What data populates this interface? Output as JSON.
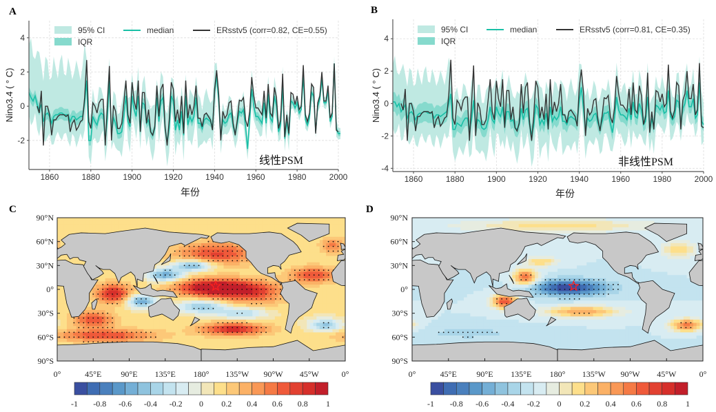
{
  "panels": {
    "A": {
      "letter": "A",
      "psm_label": "线性PSM"
    },
    "B": {
      "letter": "B",
      "psm_label": "非线性PSM"
    },
    "C": {
      "letter": "C"
    },
    "D": {
      "letter": "D"
    }
  },
  "colors": {
    "ci": "#bfe9e2",
    "iqr": "#86dacd",
    "median": "#19bfa6",
    "ersst": "#333333",
    "land": "#c8c8c8",
    "star": "#ff2020"
  },
  "chart_data": [
    {
      "id": "A",
      "type": "line",
      "xlabel": "年份",
      "ylabel": "Nino3.4 ( ° C)",
      "xlim": [
        1850,
        2000
      ],
      "ylim": [
        -3.7,
        5
      ],
      "xticks": [
        1860,
        1880,
        1900,
        1920,
        1940,
        1960,
        1980,
        2000
      ],
      "yticks": [
        -2,
        0,
        2,
        4
      ],
      "legend": {
        "ci": "95% CI",
        "iqr": "IQR",
        "median": "median",
        "ersst": "ERsstv5 (corr=0.82, CE=0.55)",
        "placement": "top"
      },
      "median_start": 1850,
      "median": [
        0.8,
        0.5,
        0.3,
        0.6,
        0.1,
        -0.2,
        0.1,
        -0.9,
        -0.5,
        -0.4,
        -0.6,
        -1.0,
        -0.6,
        -0.5,
        -0.5,
        -0.4,
        -0.4,
        -0.5,
        -0.5,
        -0.5,
        -0.9,
        -0.6,
        -0.6,
        -0.8,
        -0.7,
        -0.6,
        -0.6,
        0.2,
        1.5,
        -2.0,
        -2.0,
        -0.6,
        -0.9,
        -1.1,
        -0.6,
        -0.4,
        -0.5,
        -2.0,
        -0.7,
        1.5,
        -1.6,
        -0.7,
        -1.0,
        -1.6,
        -1.6,
        -1.5,
        -0.6,
        0.6,
        -0.9,
        -1.2,
        0.6,
        -0.2,
        -0.6,
        0.6,
        -1.5,
        0.2,
        0.1,
        -1.0,
        -0.8,
        -1.5,
        -1.7,
        -1.3,
        0.5,
        -0.9,
        0.3,
        0.5,
        -1.3,
        -2.1,
        -1.3,
        0.6,
        0.3,
        -1.4,
        -0.8,
        -1.4,
        -0.3,
        -1.7,
        0.6,
        -1.1,
        -0.6,
        -0.9,
        -0.6,
        0.5,
        -1.0,
        -1.0,
        -1.3,
        -0.8,
        -0.7,
        -0.8,
        -0.9,
        -1.2,
        0.8,
        1.8,
        0.3,
        -1.8,
        -0.8,
        -1.0,
        -0.9,
        -0.5,
        -0.4,
        -1.2,
        -1.6,
        -1.0,
        -0.3,
        -0.4,
        -0.2,
        -1.2,
        -2.5,
        -0.8,
        1.0,
        0.0,
        -0.6,
        -0.6,
        -0.8,
        -1.0,
        0.2,
        -1.0,
        0.7,
        -0.7,
        -0.9,
        0.6,
        0.0,
        -1.5,
        -1.1,
        1.2,
        -1.9,
        -0.9,
        -1.7,
        0.3,
        0.2,
        -0.1,
        0.2,
        -0.4,
        -0.2,
        1.8,
        -0.8,
        -1.1,
        -0.7,
        0.8,
        0.6,
        -1.5,
        0.0,
        0.4,
        1.6,
        0.2,
        0.2,
        0.9,
        -0.9,
        -0.6,
        2.5,
        -1.3,
        -1.6,
        -1.6
      ],
      "bands": [
        {
          "from": 1850,
          "to": 1877,
          "iqr_half": 0.35,
          "ci_upper": 2.8,
          "ci_lower": 1.3
        },
        {
          "from": 1878,
          "to": 1940,
          "iqr_half": 0.3,
          "ci_upper": 1.4,
          "ci_lower": 1.2
        },
        {
          "from": 1941,
          "to": 1976,
          "iqr_half": 0.25,
          "ci_upper": 0.9,
          "ci_lower": 0.8
        },
        {
          "from": 1977,
          "to": 2000,
          "iqr_half": 0.15,
          "ci_upper": 0.4,
          "ci_lower": 0.4
        }
      ]
    },
    {
      "id": "B",
      "type": "line",
      "xlabel": "年份",
      "ylabel": "Nino3.4 ( ° C)",
      "xlim": [
        1850,
        2000
      ],
      "ylim": [
        -4.2,
        5.2
      ],
      "xticks": [
        1860,
        1880,
        1900,
        1920,
        1940,
        1960,
        1980,
        2000
      ],
      "yticks": [
        -4,
        -2,
        0,
        2,
        4
      ],
      "legend": {
        "ci": "95% CI",
        "iqr": "IQR",
        "median": "median",
        "ersst": "ERsstv5 (corr=0.81, CE=0.35)",
        "placement": "top"
      },
      "median_start": 1850,
      "median": [
        0.1,
        0.1,
        -0.2,
        0.0,
        -0.5,
        -0.3,
        -0.1,
        -0.9,
        -0.6,
        -0.5,
        -0.7,
        -1.0,
        -0.7,
        -0.6,
        -0.6,
        -0.5,
        -0.5,
        -0.6,
        -0.6,
        -0.6,
        -0.9,
        -0.7,
        -0.7,
        -0.8,
        -0.7,
        -0.6,
        -0.5,
        0.0,
        0.6,
        -1.6,
        -1.6,
        -1.2,
        -1.3,
        -1.4,
        -1.1,
        -0.9,
        -0.9,
        -1.6,
        -1.0,
        0.2,
        -1.5,
        -1.0,
        -1.1,
        -1.5,
        -1.6,
        -1.5,
        -1.0,
        -0.2,
        -1.0,
        -1.2,
        -0.2,
        -0.6,
        -0.8,
        -0.2,
        -1.4,
        -0.5,
        -0.5,
        -1.1,
        -1.0,
        -1.5,
        -1.6,
        -1.3,
        -0.3,
        -1.0,
        -0.4,
        -0.3,
        -1.3,
        -1.9,
        -1.4,
        -0.1,
        -0.3,
        -1.3,
        -1.0,
        -1.3,
        -0.6,
        -1.5,
        -0.2,
        -1.1,
        -0.8,
        -1.0,
        -0.8,
        -0.2,
        -1.1,
        -1.1,
        -1.3,
        -0.9,
        -0.8,
        -0.9,
        -1.0,
        -1.2,
        0.2,
        1.0,
        -0.3,
        -1.6,
        -0.9,
        -1.1,
        -1.0,
        -0.7,
        -0.6,
        -1.2,
        -1.5,
        -1.1,
        -0.6,
        -0.6,
        -0.5,
        -1.2,
        -1.8,
        -0.9,
        0.4,
        -0.4,
        -0.7,
        -0.7,
        -0.8,
        -1.0,
        -0.3,
        -1.0,
        0.1,
        -0.8,
        -0.9,
        0.0,
        -0.4,
        -1.3,
        -1.1,
        0.4,
        -1.6,
        -1.0,
        -1.4,
        -0.1,
        -0.2,
        -0.4,
        -0.1,
        -0.6,
        -0.5,
        0.8,
        -0.8,
        -1.0,
        -0.8,
        0.2,
        0.1,
        -1.3,
        -0.3,
        0.0,
        0.8,
        -0.2,
        -0.2,
        0.3,
        -0.9,
        -0.7,
        1.3,
        -1.1,
        -1.3
      ],
      "bands": [
        {
          "from": 1850,
          "to": 1877,
          "iqr_half": 0.6,
          "ci_upper": 2.3,
          "ci_lower": 1.6
        },
        {
          "from": 1878,
          "to": 1940,
          "iqr_half": 0.5,
          "ci_upper": 1.9,
          "ci_lower": 1.7
        },
        {
          "from": 1941,
          "to": 1976,
          "iqr_half": 0.45,
          "ci_upper": 1.7,
          "ci_lower": 1.5
        },
        {
          "from": 1977,
          "to": 2000,
          "iqr_half": 0.4,
          "ci_upper": 1.5,
          "ci_lower": 1.2
        }
      ]
    },
    {
      "id": "C",
      "type": "heatmap",
      "lat_labels": [
        "90°N",
        "60°N",
        "30°N",
        "0°",
        "30°S",
        "60°S",
        "90°S"
      ],
      "lon_labels": [
        "0°",
        "45°E",
        "90°E",
        "135°E",
        "180°",
        "135°W",
        "90°W",
        "45°W",
        "0°"
      ],
      "colorbar": {
        "tick_labels": [
          "-1",
          "-0.8",
          "-0.6",
          "-0.4",
          "-0.2",
          "0",
          "0.2",
          "0.4",
          "0.6",
          "0.8",
          "1"
        ],
        "range": [
          -1,
          1
        ],
        "colors": [
          "#3a4fa0",
          "#3f6db3",
          "#4a80bd",
          "#5a98c9",
          "#74afd6",
          "#8fc3de",
          "#a9d5e8",
          "#c3e3ef",
          "#d8ecf2",
          "#e6ece0",
          "#f2e6b8",
          "#fddf8b",
          "#fcc878",
          "#fbb166",
          "#f99856",
          "#f57a45",
          "#ef5a3a",
          "#e24131",
          "#d62f2a",
          "#c21f2a"
        ]
      },
      "star": {
        "lon": 198,
        "lat": 4
      },
      "base": 0.12,
      "anomalies": [
        {
          "lon": 195,
          "lat": 2,
          "amp": 1.0,
          "rx": 45,
          "ry": 11
        },
        {
          "lon": 245,
          "lat": -4,
          "amp": 0.55,
          "rx": 40,
          "ry": 14
        },
        {
          "lon": 200,
          "lat": 45,
          "amp": 0.6,
          "rx": 50,
          "ry": 14
        },
        {
          "lon": 135,
          "lat": 18,
          "amp": -0.7,
          "rx": 22,
          "ry": 8
        },
        {
          "lon": 170,
          "lat": 30,
          "amp": -0.7,
          "rx": 25,
          "ry": 7
        },
        {
          "lon": 180,
          "lat": -22,
          "amp": -0.55,
          "rx": 30,
          "ry": 8
        },
        {
          "lon": 230,
          "lat": -30,
          "amp": -0.45,
          "rx": 30,
          "ry": 7
        },
        {
          "lon": 105,
          "lat": -15,
          "amp": -0.75,
          "rx": 18,
          "ry": 8
        },
        {
          "lon": 70,
          "lat": -5,
          "amp": 0.75,
          "rx": 22,
          "ry": 12
        },
        {
          "lon": 45,
          "lat": -38,
          "amp": 0.6,
          "rx": 25,
          "ry": 10
        },
        {
          "lon": 60,
          "lat": -58,
          "amp": 0.6,
          "rx": 60,
          "ry": 8
        },
        {
          "lon": 220,
          "lat": -50,
          "amp": 0.75,
          "rx": 40,
          "ry": 8
        },
        {
          "lon": 335,
          "lat": -45,
          "amp": -0.55,
          "rx": 20,
          "ry": 8
        },
        {
          "lon": 320,
          "lat": 18,
          "amp": 0.6,
          "rx": 28,
          "ry": 10
        },
        {
          "lon": 345,
          "lat": 55,
          "amp": 0.4,
          "rx": 15,
          "ry": 10
        }
      ]
    },
    {
      "id": "D",
      "type": "heatmap",
      "lat_labels": [
        "90°N",
        "60°N",
        "30°N",
        "0°",
        "30°S",
        "60°S",
        "90°S"
      ],
      "lon_labels": [
        "0°",
        "45°E",
        "90°E",
        "135°E",
        "180°",
        "135°W",
        "90°W",
        "45°W",
        "0°"
      ],
      "colorbar": {
        "tick_labels": [
          "-1",
          "-0.8",
          "-0.6",
          "-0.4",
          "-0.2",
          "0",
          "0.2",
          "0.4",
          "0.6",
          "0.8",
          "1"
        ],
        "range": [
          -1,
          1
        ],
        "colors": [
          "#3a4fa0",
          "#3f6db3",
          "#4a80bd",
          "#5a98c9",
          "#74afd6",
          "#8fc3de",
          "#a9d5e8",
          "#c3e3ef",
          "#d8ecf2",
          "#e6ece0",
          "#f2e6b8",
          "#fddf8b",
          "#fcc878",
          "#fbb166",
          "#f99856",
          "#f57a45",
          "#ef5a3a",
          "#e24131",
          "#d62f2a",
          "#c21f2a"
        ]
      },
      "star": {
        "lon": 200,
        "lat": 4
      },
      "base": -0.2,
      "anomalies": [
        {
          "lon": 195,
          "lat": 2,
          "amp": -0.8,
          "rx": 45,
          "ry": 10
        },
        {
          "lon": 140,
          "lat": 15,
          "amp": 0.8,
          "rx": 15,
          "ry": 10
        },
        {
          "lon": 115,
          "lat": -15,
          "amp": 0.9,
          "rx": 16,
          "ry": 9
        },
        {
          "lon": 210,
          "lat": -28,
          "amp": 0.6,
          "rx": 45,
          "ry": 7
        },
        {
          "lon": 160,
          "lat": 35,
          "amp": 0.4,
          "rx": 20,
          "ry": 6
        },
        {
          "lon": 340,
          "lat": -45,
          "amp": 0.75,
          "rx": 20,
          "ry": 8
        },
        {
          "lon": 330,
          "lat": 50,
          "amp": 0.4,
          "rx": 20,
          "ry": 10
        },
        {
          "lon": 70,
          "lat": -55,
          "amp": -0.15,
          "rx": 60,
          "ry": 8
        },
        {
          "lon": 180,
          "lat": 80,
          "amp": 0.35,
          "rx": 120,
          "ry": 8
        }
      ]
    }
  ]
}
